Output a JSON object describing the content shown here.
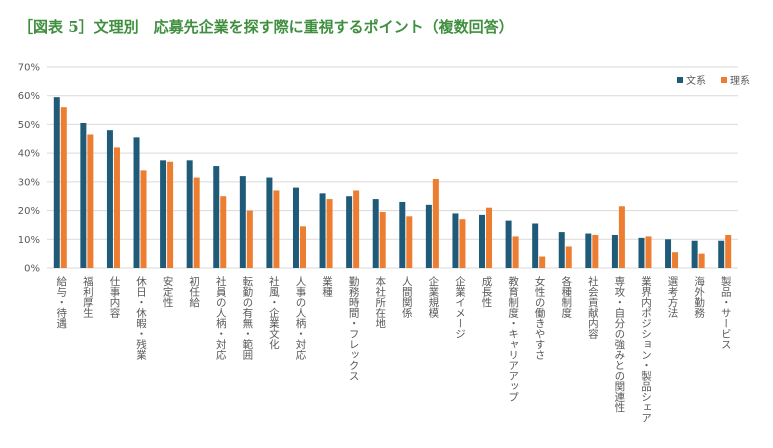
{
  "chart_data": {
    "type": "bar",
    "title": "［図表 5］文理別　応募先企業を探す際に重視するポイント（複数回答）",
    "categories": [
      "給与・待遇",
      "福利厚生",
      "仕事内容",
      "休日・休暇・残業",
      "安定性",
      "初任給",
      "社員の人柄・対応",
      "転勤の有無・範囲",
      "社風・企業文化",
      "人事の人柄・対応",
      "業種",
      "勤務時間・フレックス",
      "本社所在地",
      "人間関係",
      "企業規模",
      "企業イメージ",
      "成長性",
      "教育制度・キャリアアップ",
      "女性の働きやすさ",
      "各種制度",
      "社会貢献内容",
      "専攻・自分の強みとの関連性",
      "業界内ポジション・製品シェア",
      "選考方法",
      "海外勤務",
      "製品・サービス"
    ],
    "series": [
      {
        "name": "文系",
        "color": "#1f5b78",
        "values": [
          59.5,
          50.5,
          48,
          45.5,
          37.5,
          37.5,
          35.5,
          32,
          31.5,
          28,
          26,
          25,
          24,
          23,
          22,
          19,
          18.5,
          16.5,
          15.5,
          12.5,
          12,
          11.5,
          10.5,
          10,
          9.5,
          9.5
        ]
      },
      {
        "name": "理系",
        "color": "#ed7d31",
        "values": [
          56,
          46.5,
          42,
          34,
          37,
          31.5,
          25,
          20,
          27,
          14.5,
          24,
          27,
          19.5,
          18,
          31,
          17,
          21,
          11,
          4,
          7.5,
          11.5,
          21.5,
          11,
          5.5,
          5,
          11.5
        ]
      }
    ],
    "ylim": [
      0,
      70
    ],
    "yticks": [
      {
        "value": 0,
        "label": "0%"
      },
      {
        "value": 10,
        "label": "10%"
      },
      {
        "value": 20,
        "label": "20%"
      },
      {
        "value": 30,
        "label": "30%"
      },
      {
        "value": 40,
        "label": "40%"
      },
      {
        "value": 50,
        "label": "50%"
      },
      {
        "value": 60,
        "label": "60%"
      },
      {
        "value": 70,
        "label": "70%"
      }
    ],
    "grid": true,
    "legend": "top-right"
  }
}
